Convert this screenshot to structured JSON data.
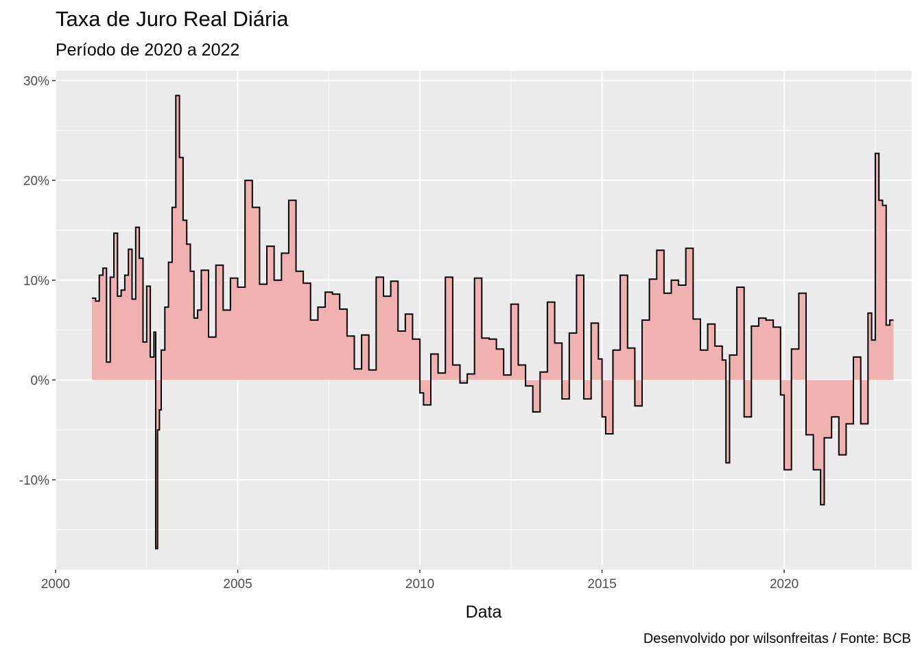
{
  "chart_data": {
    "type": "area",
    "title": "Taxa de Juro Real Diária",
    "subtitle": "Período de 2020 a 2022",
    "xlabel": "Data",
    "ylabel": "",
    "caption": "Desenvolvido por wilsonfreitas / Fonte: BCB",
    "xlim": [
      2000,
      2023.5
    ],
    "ylim": [
      -19,
      31
    ],
    "x_ticks": [
      2000,
      2005,
      2010,
      2015,
      2020
    ],
    "x_tick_labels": [
      "2000",
      "2005",
      "2010",
      "2015",
      "2020"
    ],
    "y_ticks": [
      -10,
      0,
      10,
      20,
      30
    ],
    "y_tick_labels": [
      "-10%",
      "0%",
      "10%",
      "20%",
      "30%"
    ],
    "grid": true,
    "fill_color": "#f1b1b1",
    "line_color": "#000000",
    "panel_color": "#ebebeb",
    "series": [
      {
        "x": [
          2001.0,
          2001.1,
          2001.2,
          2001.3,
          2001.4,
          2001.5,
          2001.6,
          2001.7,
          2001.8,
          2001.9,
          2002.0,
          2002.1,
          2002.2,
          2002.3,
          2002.4,
          2002.5,
          2002.6,
          2002.7,
          2002.75,
          2002.8,
          2002.85,
          2002.9,
          2003.0,
          2003.1,
          2003.2,
          2003.3,
          2003.4,
          2003.5,
          2003.6,
          2003.7,
          2003.8,
          2003.9,
          2004.0,
          2004.2,
          2004.4,
          2004.6,
          2004.8,
          2005.0,
          2005.2,
          2005.4,
          2005.6,
          2005.8,
          2006.0,
          2006.2,
          2006.4,
          2006.6,
          2006.8,
          2007.0,
          2007.2,
          2007.4,
          2007.6,
          2007.8,
          2008.0,
          2008.2,
          2008.4,
          2008.6,
          2008.8,
          2009.0,
          2009.2,
          2009.4,
          2009.6,
          2009.8,
          2010.0,
          2010.1,
          2010.3,
          2010.5,
          2010.7,
          2010.9,
          2011.1,
          2011.3,
          2011.5,
          2011.7,
          2011.9,
          2012.1,
          2012.3,
          2012.5,
          2012.7,
          2012.9,
          2013.1,
          2013.3,
          2013.5,
          2013.7,
          2013.9,
          2014.1,
          2014.3,
          2014.5,
          2014.7,
          2014.9,
          2015.0,
          2015.1,
          2015.3,
          2015.5,
          2015.7,
          2015.9,
          2016.1,
          2016.3,
          2016.5,
          2016.7,
          2016.9,
          2017.1,
          2017.3,
          2017.5,
          2017.7,
          2017.9,
          2018.1,
          2018.3,
          2018.4,
          2018.5,
          2018.7,
          2018.9,
          2019.1,
          2019.3,
          2019.5,
          2019.7,
          2019.9,
          2020.0,
          2020.2,
          2020.4,
          2020.6,
          2020.8,
          2021.0,
          2021.1,
          2021.3,
          2021.5,
          2021.7,
          2021.9,
          2022.1,
          2022.3,
          2022.4,
          2022.5,
          2022.6,
          2022.7,
          2022.8,
          2022.9
        ],
        "y": [
          8.2,
          7.9,
          10.5,
          11.2,
          1.8,
          10.3,
          14.7,
          8.4,
          9.0,
          10.5,
          13.1,
          8.1,
          15.3,
          12.2,
          3.8,
          9.4,
          2.3,
          4.8,
          -16.9,
          -5.0,
          -3.0,
          3.0,
          7.3,
          11.8,
          17.3,
          28.5,
          22.3,
          16.0,
          13.6,
          10.9,
          6.2,
          7.0,
          11.0,
          4.3,
          11.5,
          7.0,
          10.2,
          9.3,
          20.0,
          17.3,
          9.6,
          13.4,
          10.0,
          12.7,
          18.0,
          10.9,
          9.7,
          6.0,
          7.3,
          8.8,
          8.6,
          7.1,
          4.4,
          1.1,
          4.5,
          1.0,
          10.3,
          8.4,
          9.9,
          4.9,
          6.6,
          4.1,
          -1.3,
          -2.5,
          2.6,
          0.7,
          10.3,
          1.5,
          -0.3,
          0.6,
          10.2,
          4.2,
          4.1,
          3.1,
          0.5,
          7.6,
          1.5,
          -0.6,
          -3.2,
          0.8,
          7.8,
          3.7,
          -1.9,
          4.7,
          10.5,
          -1.9,
          5.7,
          2.1,
          -3.7,
          -5.4,
          3.0,
          10.5,
          3.2,
          -2.6,
          6.0,
          10.1,
          13.0,
          8.7,
          10.0,
          9.5,
          13.2,
          6.1,
          3.0,
          5.6,
          3.4,
          2.0,
          -8.3,
          2.5,
          9.3,
          -3.7,
          5.4,
          6.2,
          6.0,
          5.3,
          -1.5,
          -9.0,
          3.1,
          8.7,
          -5.5,
          -9.0,
          -12.5,
          -5.8,
          -3.7,
          -7.5,
          -4.4,
          2.3,
          -4.4,
          6.7,
          4.0,
          22.7,
          18.0,
          17.5,
          5.5,
          6.0
        ]
      }
    ]
  }
}
